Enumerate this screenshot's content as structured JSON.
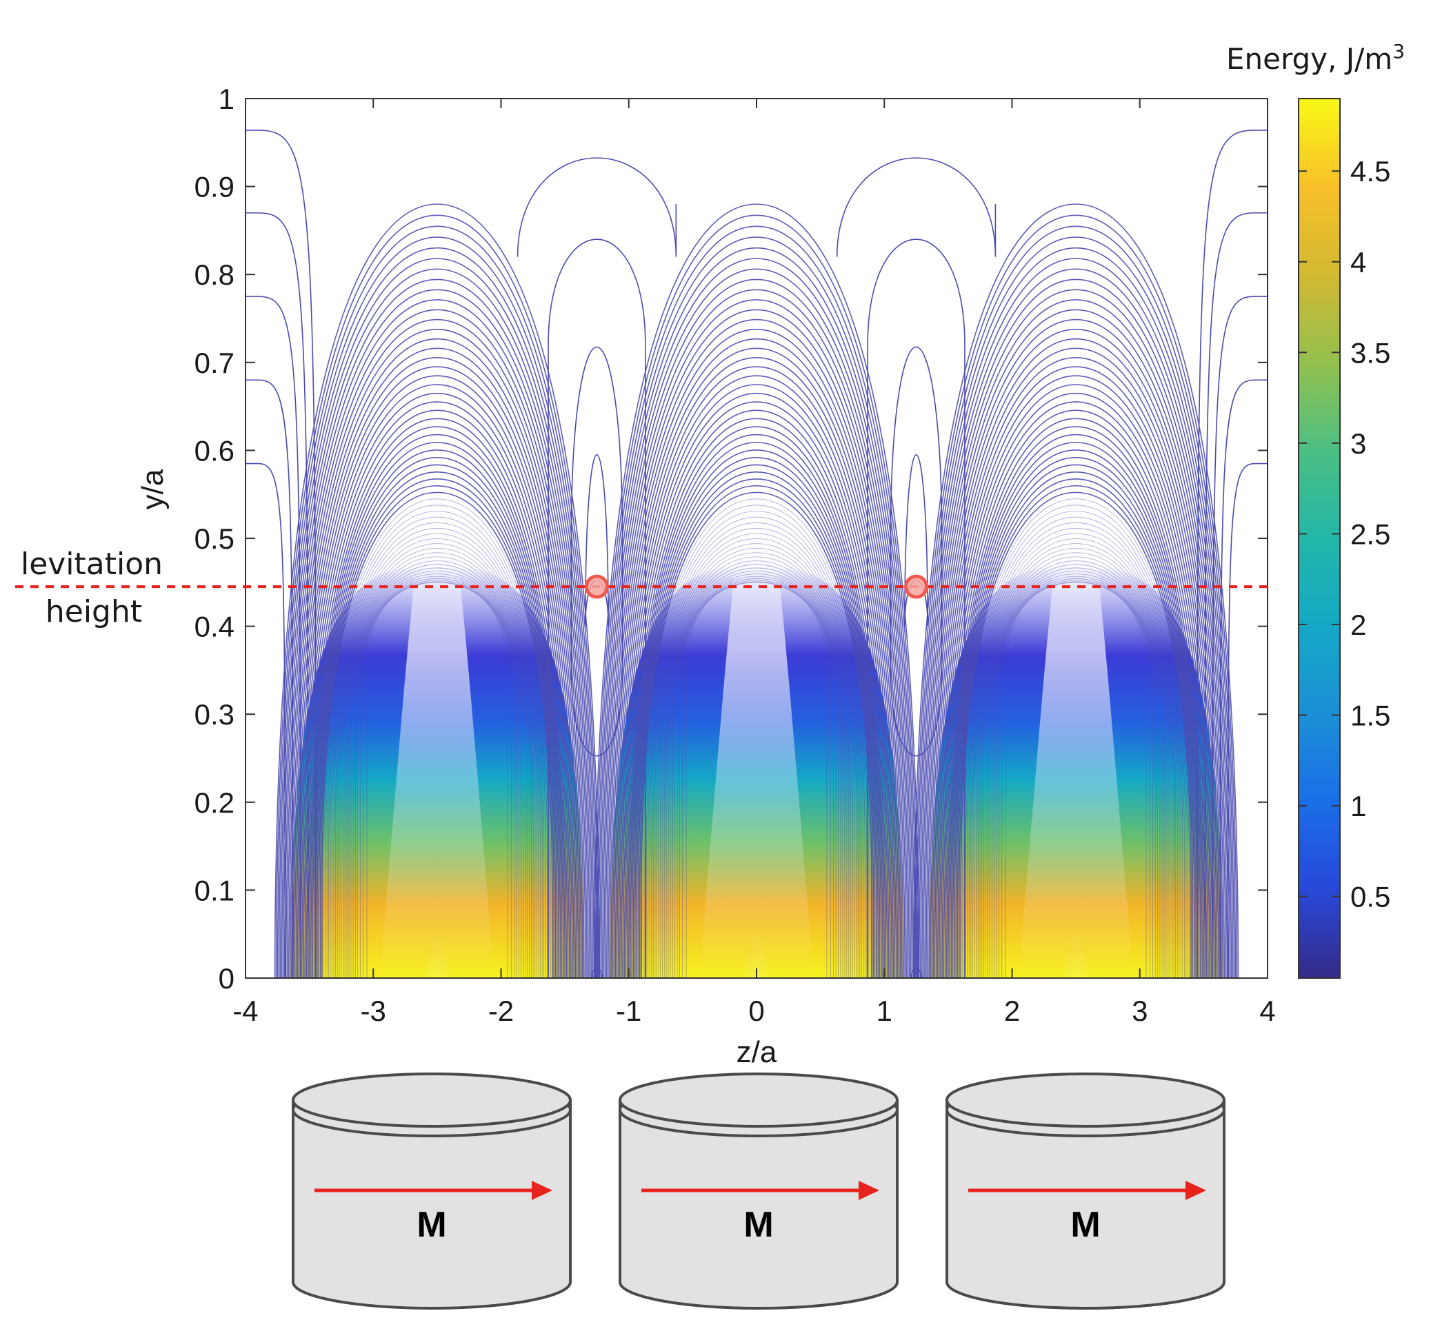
{
  "chart_data": {
    "type": "heatmap",
    "description": "Magnetic energy density contour plot above a periodic array of magnets",
    "xlabel": "z/a",
    "ylabel": "y/a",
    "xlim": [
      -4,
      4
    ],
    "ylim": [
      0,
      1
    ],
    "x_ticks": [
      "-4",
      "-3",
      "-2",
      "-1",
      "0",
      "1",
      "2",
      "3",
      "4"
    ],
    "x_tick_values": [
      -4,
      -3,
      -2,
      -1,
      0,
      1,
      2,
      3,
      4
    ],
    "y_ticks": [
      "0",
      "0.1",
      "0.2",
      "0.3",
      "0.4",
      "0.5",
      "0.6",
      "0.7",
      "0.8",
      "0.9",
      "1"
    ],
    "y_tick_values": [
      0,
      0.1,
      0.2,
      0.3,
      0.4,
      0.5,
      0.6,
      0.7,
      0.8,
      0.9,
      1.0
    ],
    "energy_peaks_z": [
      -2.5,
      0,
      2.5
    ],
    "energy_minima_z": [
      -1.25,
      1.25
    ],
    "levitation_height_y": 0.445,
    "levitation_label_line1": "levitation",
    "levitation_label_line2": "height",
    "colorbar": {
      "title": "Energy, J/m",
      "title_superscript": "3",
      "min": 0.05,
      "max": 4.9,
      "ticks": [
        "0.5",
        "1",
        "1.5",
        "2",
        "2.5",
        "3",
        "3.5",
        "4",
        "4.5"
      ],
      "tick_values": [
        0.5,
        1,
        1.5,
        2,
        2.5,
        3,
        3.5,
        4,
        4.5
      ],
      "colormap": "parula"
    }
  },
  "magnets": [
    {
      "label": "M",
      "direction": "+z"
    },
    {
      "label": "M",
      "direction": "+z"
    },
    {
      "label": "M",
      "direction": "+z"
    }
  ],
  "colors": {
    "contour_line": "#4b4bb0",
    "levitation_line": "#e8221d",
    "marker_fill": "#f4a6a0",
    "marker_stroke": "#ef5a50",
    "magnet_fill": "#e2e2e2",
    "magnet_stroke": "#4a4a4a",
    "arrow": "#e8221d"
  }
}
